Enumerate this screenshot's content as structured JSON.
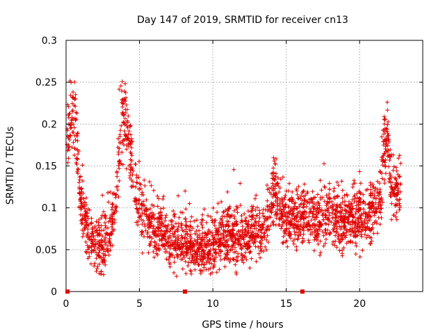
{
  "chart_data": {
    "type": "scatter",
    "title": "Day 147 of 2019, SRMTID for receiver cn13",
    "xlabel": "GPS time / hours",
    "ylabel": "SRMTID / TECUs",
    "xlim": [
      0,
      24.3
    ],
    "ylim": [
      0,
      0.3
    ],
    "x_ticks": [
      0,
      5,
      10,
      15,
      20
    ],
    "x_tick_labels": [
      "0",
      "5",
      "10",
      "15",
      "20"
    ],
    "y_ticks": [
      0,
      0.05,
      0.1,
      0.15,
      0.2,
      0.25,
      0.3
    ],
    "y_tick_labels": [
      "0",
      "0.05",
      "0.1",
      "0.15",
      "0.2",
      "0.25",
      "0.3"
    ],
    "grid": true,
    "marker": "+",
    "series_color": "#e00000",
    "axis_markers_x": [
      0.1,
      8.1,
      16.1
    ],
    "trend": {
      "x": [
        0,
        0.3,
        0.6,
        0.9,
        1.2,
        1.6,
        2.0,
        2.5,
        3.0,
        3.4,
        3.8,
        4.1,
        4.5,
        4.8,
        5.2,
        5.8,
        6.5,
        7.0,
        7.5,
        8.0,
        8.5,
        9.0,
        9.5,
        10.0,
        10.5,
        11.0,
        11.5,
        12.0,
        12.5,
        13.0,
        13.5,
        14.0,
        14.3,
        14.8,
        15.3,
        16.0,
        16.5,
        17.0,
        17.5,
        18.0,
        18.5,
        19.0,
        19.5,
        20.0,
        20.5,
        21.0,
        21.5,
        22.0,
        22.5,
        22.8
      ],
      "y": [
        0.15,
        0.17,
        0.15,
        0.12,
        0.09,
        0.07,
        0.055,
        0.055,
        0.07,
        0.11,
        0.17,
        0.16,
        0.14,
        0.11,
        0.09,
        0.075,
        0.075,
        0.06,
        0.055,
        0.055,
        0.055,
        0.05,
        0.05,
        0.055,
        0.06,
        0.065,
        0.065,
        0.065,
        0.07,
        0.075,
        0.075,
        0.09,
        0.1,
        0.085,
        0.085,
        0.09,
        0.085,
        0.085,
        0.085,
        0.09,
        0.085,
        0.08,
        0.085,
        0.09,
        0.09,
        0.1,
        0.11,
        0.12,
        0.12,
        0.11
      ]
    },
    "peaks": [
      {
        "x": 0.5,
        "width": 0.45,
        "height": 0.07
      },
      {
        "x": 4.0,
        "width": 0.55,
        "height": 0.06
      },
      {
        "x": 14.2,
        "width": 0.3,
        "height": 0.05
      },
      {
        "x": 21.8,
        "width": 0.35,
        "height": 0.09
      }
    ],
    "num_points": 2600
  }
}
